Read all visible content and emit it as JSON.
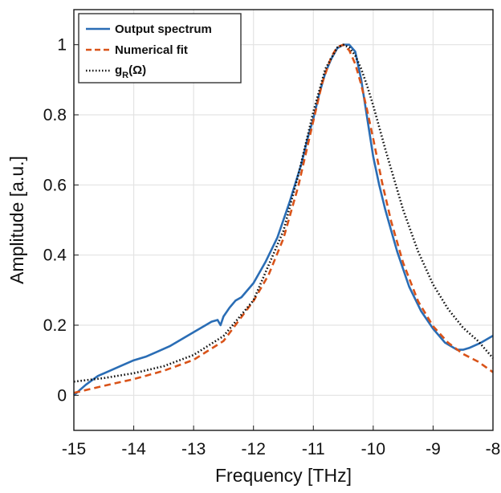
{
  "chart_data": {
    "type": "line",
    "title": "",
    "xlabel": "Frequency [THz]",
    "ylabel": "Amplitude [a.u.]",
    "xlim": [
      -15,
      -8
    ],
    "ylim": [
      -0.1,
      1.1
    ],
    "grid": true,
    "legend_position": "top-left",
    "x_ticks": [
      -15,
      -14,
      -13,
      -12,
      -11,
      -10,
      -9,
      -8
    ],
    "x_tick_labels": [
      "-15",
      "-14",
      "-13",
      "-12",
      "-11",
      "-10",
      "-9",
      "-8"
    ],
    "y_ticks": [
      0,
      0.2,
      0.4,
      0.6,
      0.8,
      1
    ],
    "y_tick_labels": [
      "0",
      "0.2",
      "0.4",
      "0.6",
      "0.8",
      "1"
    ],
    "series": [
      {
        "name": "Output spectrum",
        "color": "#2a6db5",
        "style": "solid",
        "x": [
          -15,
          -14.8,
          -14.6,
          -14.4,
          -14.2,
          -14.0,
          -13.8,
          -13.6,
          -13.4,
          -13.2,
          -13.0,
          -12.9,
          -12.8,
          -12.7,
          -12.6,
          -12.55,
          -12.5,
          -12.4,
          -12.3,
          -12.2,
          -12.0,
          -11.8,
          -11.6,
          -11.4,
          -11.2,
          -11.1,
          -11.0,
          -10.9,
          -10.8,
          -10.7,
          -10.6,
          -10.5,
          -10.4,
          -10.3,
          -10.2,
          -10.1,
          -10.0,
          -9.9,
          -9.8,
          -9.7,
          -9.6,
          -9.5,
          -9.4,
          -9.2,
          -9.0,
          -8.8,
          -8.6,
          -8.5,
          -8.4,
          -8.2,
          -8.0
        ],
        "y": [
          0.0,
          0.03,
          0.055,
          0.07,
          0.085,
          0.1,
          0.11,
          0.125,
          0.14,
          0.16,
          0.18,
          0.19,
          0.2,
          0.21,
          0.215,
          0.2,
          0.225,
          0.25,
          0.27,
          0.28,
          0.32,
          0.38,
          0.45,
          0.55,
          0.66,
          0.73,
          0.79,
          0.86,
          0.92,
          0.96,
          0.99,
          1.0,
          1.0,
          0.98,
          0.9,
          0.79,
          0.68,
          0.6,
          0.53,
          0.47,
          0.41,
          0.36,
          0.31,
          0.24,
          0.19,
          0.15,
          0.13,
          0.13,
          0.135,
          0.15,
          0.17
        ]
      },
      {
        "name": "Numerical fit",
        "color": "#d95319",
        "style": "dashed",
        "x": [
          -15,
          -14.5,
          -14.0,
          -13.5,
          -13.0,
          -12.5,
          -12.0,
          -11.75,
          -11.5,
          -11.25,
          -11.0,
          -10.85,
          -10.7,
          -10.6,
          -10.5,
          -10.4,
          -10.3,
          -10.2,
          -10.1,
          -10.0,
          -9.85,
          -9.7,
          -9.5,
          -9.25,
          -9.0,
          -8.75,
          -8.5,
          -8.25,
          -8.0
        ],
        "y": [
          0.007,
          0.027,
          0.046,
          0.07,
          0.101,
          0.155,
          0.269,
          0.343,
          0.447,
          0.597,
          0.783,
          0.892,
          0.966,
          0.993,
          1.0,
          0.984,
          0.945,
          0.886,
          0.812,
          0.731,
          0.606,
          0.496,
          0.378,
          0.268,
          0.197,
          0.15,
          0.118,
          0.096,
          0.066
        ]
      },
      {
        "name": "g_R(Ω)",
        "color": "#111111",
        "style": "dotted",
        "x": [
          -15,
          -14.5,
          -14.0,
          -13.5,
          -13.0,
          -12.5,
          -12.0,
          -11.5,
          -11.25,
          -11.0,
          -10.8,
          -10.6,
          -10.5,
          -10.4,
          -10.3,
          -10.2,
          -10.1,
          -10.0,
          -9.8,
          -9.5,
          -9.25,
          -9.0,
          -8.75,
          -8.5,
          -8.25,
          -8.0
        ],
        "y": [
          0.039,
          0.049,
          0.063,
          0.083,
          0.115,
          0.169,
          0.271,
          0.469,
          0.629,
          0.809,
          0.931,
          0.992,
          1.0,
          0.992,
          0.969,
          0.931,
          0.882,
          0.826,
          0.703,
          0.529,
          0.41,
          0.316,
          0.246,
          0.193,
          0.155,
          0.106
        ]
      }
    ]
  },
  "legend_label_3": {
    "main": "g",
    "sub": "R",
    "rest": "(Ω)"
  }
}
